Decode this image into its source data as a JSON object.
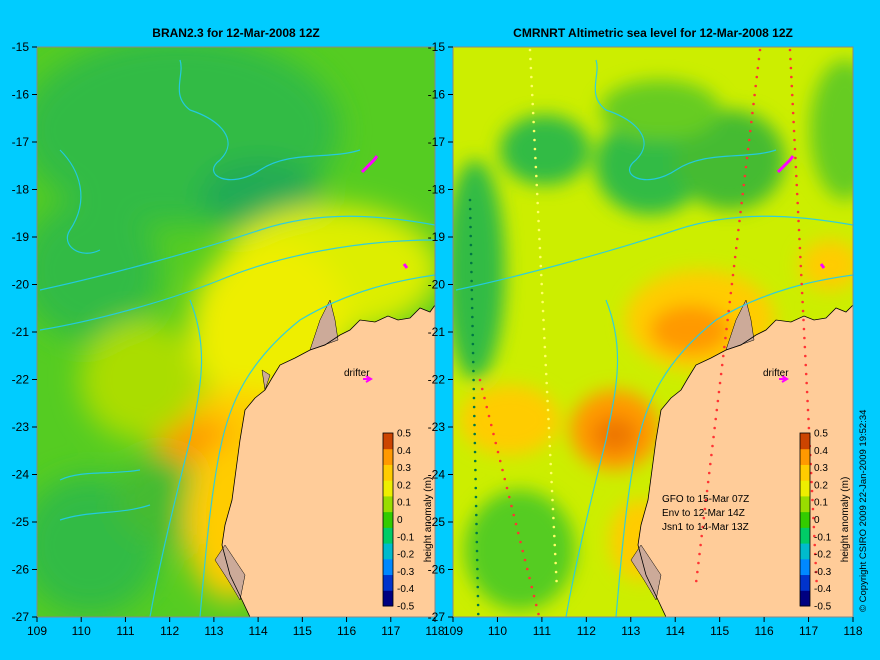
{
  "chart_data": [
    {
      "type": "heatmap",
      "title": "BRAN2.3 for 12-Mar-2008 12Z",
      "xlim": [
        109,
        118
      ],
      "ylim": [
        -27,
        -15
      ],
      "x_ticks": [
        "109",
        "110",
        "111",
        "112",
        "113",
        "114",
        "115",
        "116",
        "117",
        "118"
      ],
      "y_ticks": [
        "-15",
        "-16",
        "-17",
        "-18",
        "-19",
        "-20",
        "-21",
        "-22",
        "-23",
        "-24",
        "-25",
        "-26",
        "-27"
      ],
      "colorbar": {
        "label": "height anomaly (m)",
        "range": [
          -0.5,
          0.5
        ],
        "ticks": [
          "0.5",
          "0.4",
          "0.3",
          "0.2",
          "0.1",
          "0",
          "-0.1",
          "-0.2",
          "-0.3",
          "-0.4",
          "-0.5"
        ],
        "colors": [
          "#000080",
          "#0033cc",
          "#0088ff",
          "#00bbcc",
          "#00cc66",
          "#33cc00",
          "#99dd00",
          "#eeee00",
          "#ffcc00",
          "#ff9900",
          "#cc4400"
        ]
      },
      "annotations": [
        {
          "text": "drifter",
          "x": 116.6,
          "y": -22.0
        }
      ],
      "land_color": "#ffcc99",
      "background": "#00ccff"
    },
    {
      "type": "heatmap",
      "title": "CMRNRT Altimetric sea level  for 12-Mar-2008 12Z",
      "xlim": [
        109,
        118
      ],
      "ylim": [
        -27,
        -15
      ],
      "x_ticks": [
        "109",
        "110",
        "111",
        "112",
        "113",
        "114",
        "115",
        "116",
        "117",
        "118"
      ],
      "y_ticks": [
        "-15",
        "-16",
        "-17",
        "-18",
        "-19",
        "-20",
        "-21",
        "-22",
        "-23",
        "-24",
        "-25",
        "-26",
        "-27"
      ],
      "colorbar": {
        "label": "height anomaly (m)",
        "range": [
          -0.5,
          0.5
        ],
        "ticks": [
          "0.5",
          "0.4",
          "0.3",
          "0.2",
          "0.1",
          "0",
          "-0.1",
          "-0.2",
          "-0.3",
          "-0.4",
          "-0.5"
        ],
        "colors": [
          "#000080",
          "#0033cc",
          "#0088ff",
          "#00bbcc",
          "#00cc66",
          "#33cc00",
          "#99dd00",
          "#eeee00",
          "#ffcc00",
          "#ff9900",
          "#cc4400"
        ]
      },
      "annotations": [
        {
          "text": "drifter",
          "x": 116.6,
          "y": -22.0
        }
      ],
      "missions": [
        "GFO to 15-Mar 07Z",
        "Env to 12-Mar 14Z",
        "Jsn1 to 14-Mar 13Z"
      ],
      "land_color": "#ffcc99",
      "background": "#00ccff"
    }
  ],
  "copyright": "© Copyright CSIRO 2009  22-Jan-2009 19:52:34"
}
